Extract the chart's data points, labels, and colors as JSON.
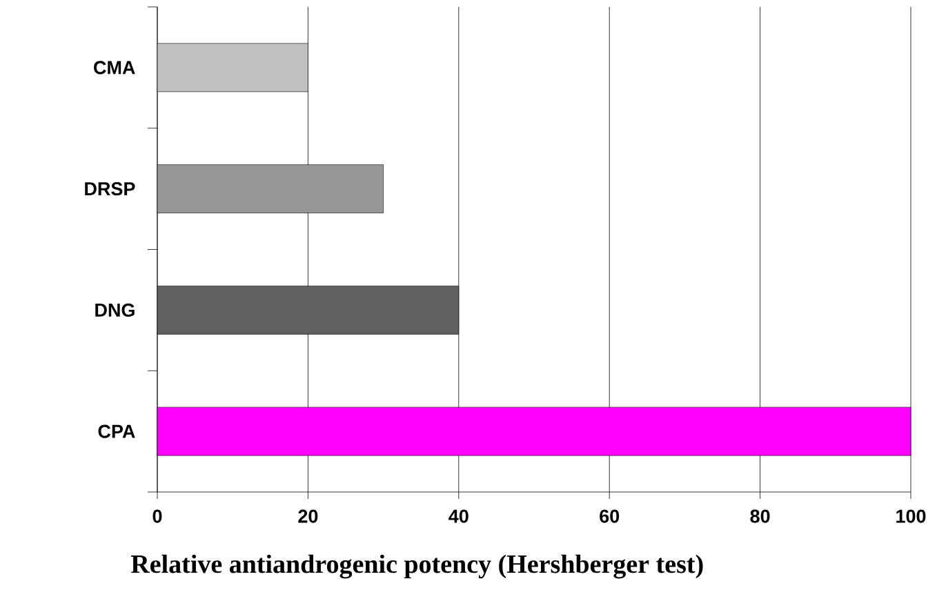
{
  "chart_data": {
    "type": "bar",
    "orientation": "horizontal",
    "xlabel": "Relative antiandrogenic potency (Hershberger test)",
    "categories": [
      "CMA",
      "DRSP",
      "DNG",
      "CPA"
    ],
    "values": [
      20,
      30,
      40,
      100
    ],
    "colors": [
      "#c0c0c0",
      "#969696",
      "#606060",
      "#ff00ff"
    ],
    "xlim": [
      0,
      100
    ],
    "xticks": [
      0,
      20,
      40,
      60,
      80,
      100
    ],
    "grid": "x"
  }
}
